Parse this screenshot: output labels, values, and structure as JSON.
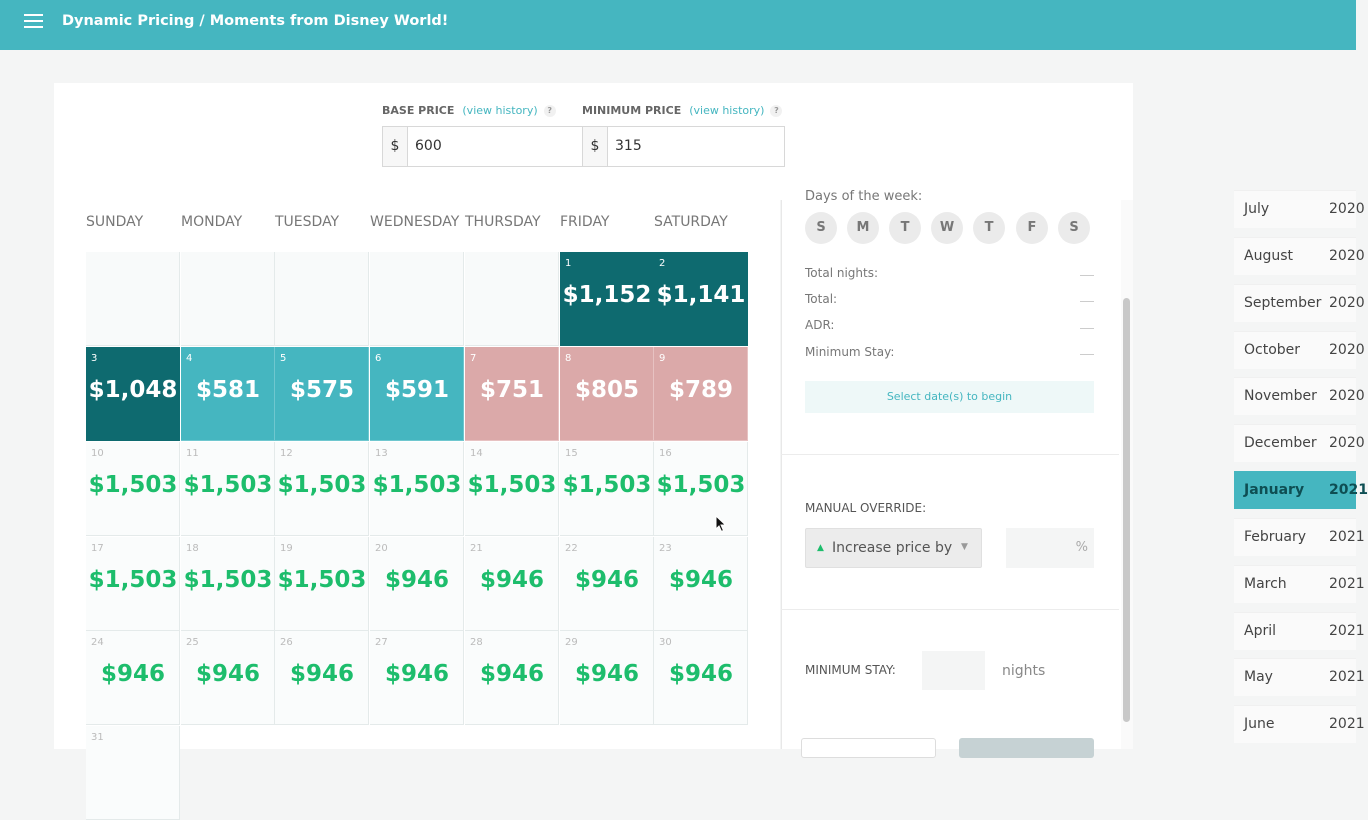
{
  "header": {
    "title": "Dynamic Pricing / Moments from Disney World!"
  },
  "pricing": {
    "base": {
      "label": "BASE PRICE",
      "history_link": "(view history)",
      "help": "?",
      "currency": "$",
      "value": "600"
    },
    "minimum": {
      "label": "MINIMUM PRICE",
      "history_link": "(view history)",
      "help": "?",
      "currency": "$",
      "value": "315"
    }
  },
  "calendar": {
    "weekdays": [
      "SUNDAY",
      "MONDAY",
      "TUESDAY",
      "WEDNESDAY",
      "THURSDAY",
      "FRIDAY",
      "SATURDAY"
    ],
    "cells": [
      {
        "day": "1",
        "price": "$1,152",
        "state": "dark"
      },
      {
        "day": "2",
        "price": "$1,141",
        "state": "dark"
      },
      {
        "day": "3",
        "price": "$1,048",
        "state": "dark"
      },
      {
        "day": "4",
        "price": "$581",
        "state": "teal"
      },
      {
        "day": "5",
        "price": "$575",
        "state": "teal"
      },
      {
        "day": "6",
        "price": "$591",
        "state": "teal"
      },
      {
        "day": "7",
        "price": "$751",
        "state": "pink"
      },
      {
        "day": "8",
        "price": "$805",
        "state": "pink"
      },
      {
        "day": "9",
        "price": "$789",
        "state": "pink"
      },
      {
        "day": "10",
        "price": "$1,503",
        "state": "normal"
      },
      {
        "day": "11",
        "price": "$1,503",
        "state": "normal"
      },
      {
        "day": "12",
        "price": "$1,503",
        "state": "normal"
      },
      {
        "day": "13",
        "price": "$1,503",
        "state": "normal"
      },
      {
        "day": "14",
        "price": "$1,503",
        "state": "normal"
      },
      {
        "day": "15",
        "price": "$1,503",
        "state": "normal"
      },
      {
        "day": "16",
        "price": "$1,503",
        "state": "normal"
      },
      {
        "day": "17",
        "price": "$1,503",
        "state": "normal"
      },
      {
        "day": "18",
        "price": "$1,503",
        "state": "normal"
      },
      {
        "day": "19",
        "price": "$1,503",
        "state": "normal"
      },
      {
        "day": "20",
        "price": "$946",
        "state": "normal"
      },
      {
        "day": "21",
        "price": "$946",
        "state": "normal"
      },
      {
        "day": "22",
        "price": "$946",
        "state": "normal"
      },
      {
        "day": "23",
        "price": "$946",
        "state": "normal"
      },
      {
        "day": "24",
        "price": "$946",
        "state": "normal"
      },
      {
        "day": "25",
        "price": "$946",
        "state": "normal"
      },
      {
        "day": "26",
        "price": "$946",
        "state": "normal"
      },
      {
        "day": "27",
        "price": "$946",
        "state": "normal"
      },
      {
        "day": "28",
        "price": "$946",
        "state": "normal"
      },
      {
        "day": "29",
        "price": "$946",
        "state": "normal"
      },
      {
        "day": "30",
        "price": "$946",
        "state": "normal"
      },
      {
        "day": "31",
        "price": "",
        "state": "normal"
      }
    ]
  },
  "panel": {
    "dow_title": "Days of the week:",
    "dow_letters": [
      "S",
      "M",
      "T",
      "W",
      "T",
      "F",
      "S"
    ],
    "stats": [
      {
        "label": "Total nights:",
        "value": ""
      },
      {
        "label": "Total:",
        "value": ""
      },
      {
        "label": "ADR:",
        "value": ""
      },
      {
        "label": "Minimum Stay:",
        "value": ""
      }
    ],
    "begin_label": "Select date(s) to begin",
    "manual_override": {
      "label": "MANUAL OVERRIDE:",
      "select_value": "Increase price by",
      "percent": "%"
    },
    "minimum_stay": {
      "label": "MINIMUM STAY:",
      "unit": "nights"
    }
  },
  "months": [
    {
      "name": "July",
      "year": "2020"
    },
    {
      "name": "August",
      "year": "2020"
    },
    {
      "name": "September",
      "year": "2020"
    },
    {
      "name": "October",
      "year": "2020"
    },
    {
      "name": "November",
      "year": "2020"
    },
    {
      "name": "December",
      "year": "2020"
    },
    {
      "name": "January",
      "year": "2021",
      "active": true
    },
    {
      "name": "February",
      "year": "2021"
    },
    {
      "name": "March",
      "year": "2021"
    },
    {
      "name": "April",
      "year": "2021"
    },
    {
      "name": "May",
      "year": "2021"
    },
    {
      "name": "June",
      "year": "2021"
    }
  ],
  "colors": {
    "accent": "#45b6c0",
    "dark": "#0e6a6f",
    "pink": "#dba9a9",
    "green": "#1dbd6c"
  }
}
